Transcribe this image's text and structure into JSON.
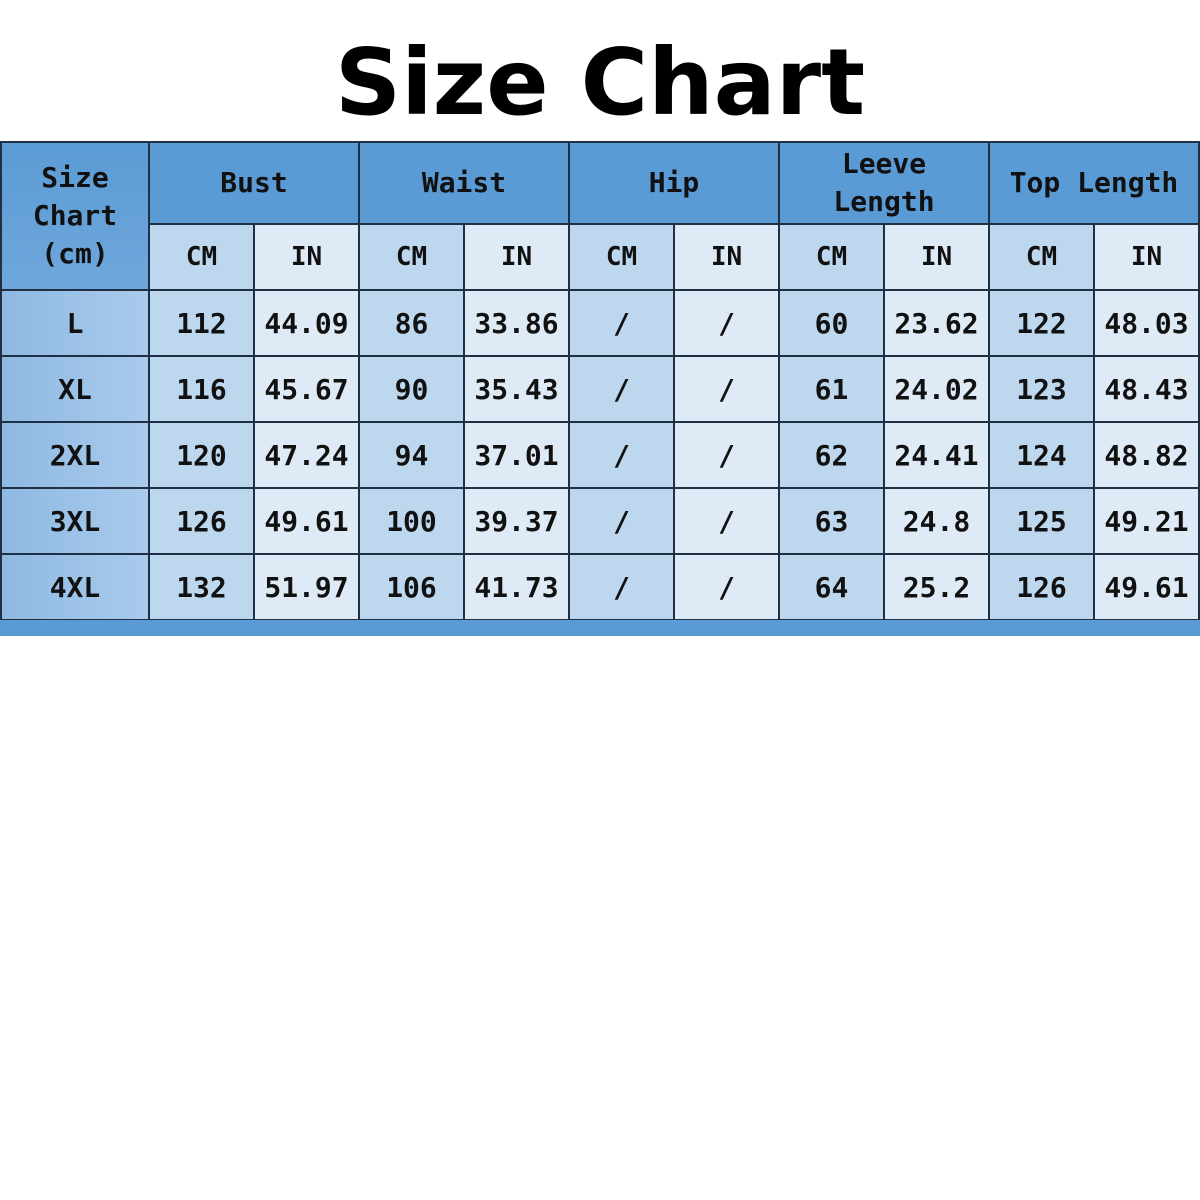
{
  "title": "Size Chart",
  "table": {
    "corner": [
      "Size",
      "Chart",
      "(cm)"
    ],
    "groups": [
      "Bust",
      "Waist",
      "Hip",
      "Leeve Length",
      "Top Length"
    ],
    "units": [
      "CM",
      "IN"
    ],
    "rows": [
      [
        "L",
        "112",
        "44.09",
        "86",
        "33.86",
        "/",
        "/",
        "60",
        "23.62",
        "122",
        "48.03"
      ],
      [
        "XL",
        "116",
        "45.67",
        "90",
        "35.43",
        "/",
        "/",
        "61",
        "24.02",
        "123",
        "48.43"
      ],
      [
        "2XL",
        "120",
        "47.24",
        "94",
        "37.01",
        "/",
        "/",
        "62",
        "24.41",
        "124",
        "48.82"
      ],
      [
        "3XL",
        "126",
        "49.61",
        "100",
        "39.37",
        "/",
        "/",
        "63",
        "24.8",
        "125",
        "49.21"
      ],
      [
        "4XL",
        "132",
        "51.97",
        "106",
        "41.73",
        "/",
        "/",
        "64",
        "25.2",
        "126",
        "49.61"
      ]
    ]
  },
  "colors": {
    "header": "#5b9bd5",
    "cm_cell": "#bdd7ee",
    "in_cell": "#deebf7"
  }
}
